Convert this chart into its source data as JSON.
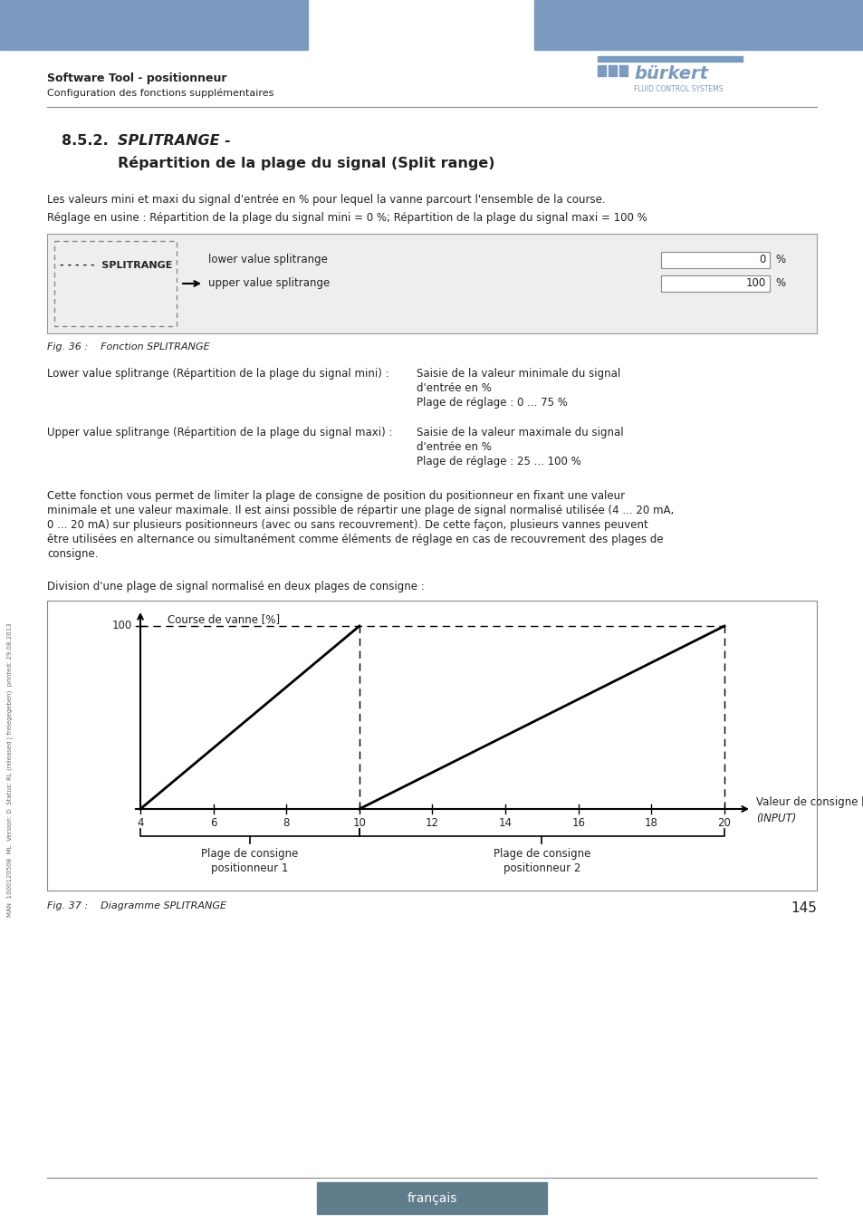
{
  "page_title": "Software Tool - positionneur",
  "page_subtitle": "Configuration des fonctions supplémentaires",
  "section_number": "8.5.2.",
  "section_title_italic": "SPLITRANGE -",
  "section_title_bold": "Répartition de la plage du signal (Split range)",
  "intro_text1": "Les valeurs mini et maxi du signal d'entrée en % pour lequel la vanne parcourt l'ensemble de la course.",
  "intro_text2": "Réglage en usine : Répartition de la plage du signal mini = 0 %; Répartition de la plage du signal maxi = 100 %",
  "ui_label": "SPLITRANGE",
  "ui_row1_label": "lower value splitrange",
  "ui_row1_value": "0",
  "ui_row2_label": "upper value splitrange",
  "ui_row2_value": "100",
  "ui_unit": "%",
  "fig36_caption": "Fig. 36 :    Fonction SPLITRANGE",
  "desc1_label": "Lower value splitrange (Répartition de la plage du signal mini) :",
  "desc1_text1": "Saisie de la valeur minimale du signal",
  "desc1_text2": "d'entrée en %",
  "desc1_text3": "Plage de réglage : 0 ... 75 %",
  "desc2_label": "Upper value splitrange (Répartition de la plage du signal maxi) :",
  "desc2_text1": "Saisie de la valeur maximale du signal",
  "desc2_text2": "d'entrée en %",
  "desc2_text3": "Plage de réglage : 25 ... 100 %",
  "body_lines": [
    "Cette fonction vous permet de limiter la plage de consigne de position du positionneur en fixant une valeur",
    "minimale et une valeur maximale. Il est ainsi possible de répartir une plage de signal normalisé utilisée (4 ... 20 mA,",
    "0 ... 20 mA) sur plusieurs positionneurs (avec ou sans recouvrement). De cette façon, plusieurs vannes peuvent",
    "être utilisées en alternance ou simultanément comme éléments de réglage en cas de recouvrement des plages de",
    "consigne."
  ],
  "division_text": "Division d'une plage de signal normalisé en deux plages de consigne :",
  "chart_ylabel": "Course de vanne [%]",
  "chart_xlabel": "Valeur de consigne [mA]",
  "chart_xlabel2": "(INPUT)",
  "chart_xticks": [
    4,
    6,
    8,
    10,
    12,
    14,
    16,
    18,
    20
  ],
  "bracket1_label1": "Plage de consigne",
  "bracket1_label2": "positionneur 1",
  "bracket2_label1": "Plage de consigne",
  "bracket2_label2": "positionneur 2",
  "fig37_caption": "Fig. 37 :    Diagramme SPLITRANGE",
  "page_number": "145",
  "footer_text": "français",
  "header_color": "#7a9bbf",
  "burkert_color": "#7a9bbf",
  "text_color": "#222222",
  "light_text": "#555555",
  "border_color": "#aaaaaa",
  "background_color": "#ffffff",
  "footer_bg_color": "#607d8b",
  "ui_bg_color": "#eeeeee"
}
